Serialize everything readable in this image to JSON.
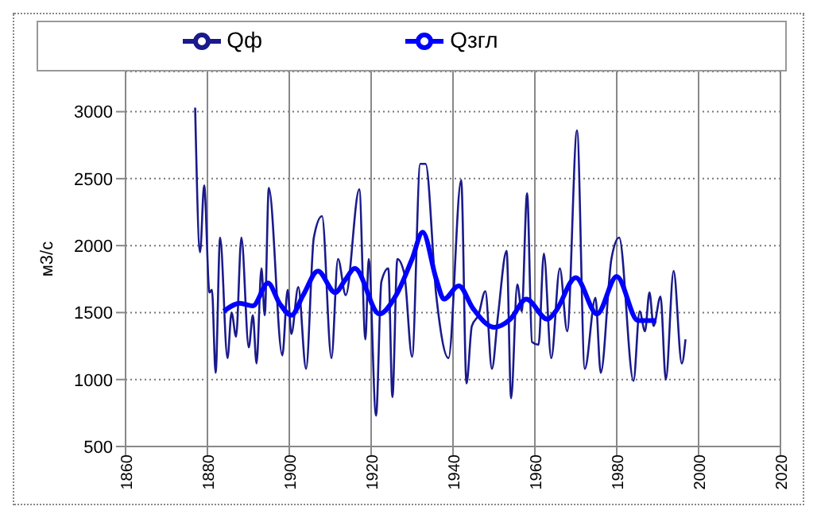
{
  "chart_data": {
    "type": "line",
    "ylabel": "м3/с",
    "xlim": [
      1860,
      2020
    ],
    "xticks": [
      1860,
      1880,
      1900,
      1920,
      1940,
      1960,
      1980,
      2000,
      2020
    ],
    "ylim": [
      500,
      3300
    ],
    "yticks": [
      500,
      1000,
      1500,
      2000,
      2500,
      3000
    ],
    "grid": true,
    "legend": "top",
    "marker": "none",
    "line_style": "solid",
    "series": [
      {
        "name": "Qф",
        "color": "#1a1a8c",
        "x": [
          1877,
          1878.2,
          1879.2,
          1880.5,
          1881.1,
          1882,
          1883.1,
          1884.9,
          1885.9,
          1887,
          1888.3,
          1890.1,
          1891.1,
          1892,
          1893.2,
          1894,
          1895,
          1898.3,
          1899.6,
          1900.5,
          1902.2,
          1904.1,
          1906,
          1908,
          1910.3,
          1911.9,
          1913.8,
          1917.1,
          1918.6,
          1919.4,
          1921.2,
          1922.5,
          1924.2,
          1925.2,
          1926.4,
          1928.1,
          1930,
          1932,
          1933.3,
          1935.9,
          1938.9,
          1942,
          1943.3,
          1944.6,
          1946.2,
          1947.9,
          1949.5,
          1951,
          1953.1,
          1954.2,
          1955.7,
          1956.8,
          1958.1,
          1959.3,
          1960.9,
          1962.2,
          1964,
          1966.1,
          1967.9,
          1970.3,
          1972.2,
          1974.8,
          1976.1,
          1978.7,
          1980.6,
          1984.1,
          1985.6,
          1986.9,
          1988,
          1989,
          1990.7,
          1992,
          1993.9,
          1995.9,
          1996.8
        ],
        "values": [
          3030,
          1950,
          2450,
          1650,
          1670,
          1050,
          2060,
          1160,
          1500,
          1320,
          2060,
          1240,
          1480,
          1120,
          1830,
          1480,
          2430,
          1180,
          1670,
          1340,
          1690,
          1080,
          2060,
          2220,
          1160,
          1900,
          1630,
          2420,
          1300,
          1900,
          730,
          1730,
          1830,
          870,
          1900,
          1790,
          1170,
          2610,
          2610,
          1630,
          1160,
          2490,
          970,
          1400,
          1480,
          1660,
          1080,
          1480,
          1960,
          860,
          1710,
          1510,
          2390,
          1280,
          1260,
          1940,
          1160,
          1830,
          1360,
          2860,
          1080,
          1610,
          1050,
          1900,
          2060,
          990,
          1510,
          1360,
          1650,
          1400,
          1620,
          1000,
          1810,
          1120,
          1300
        ]
      },
      {
        "name": "Qзгл",
        "color": "#0000ff",
        "x": [
          1884,
          1887.9,
          1891.1,
          1894.8,
          1897.6,
          1900.5,
          1903.4,
          1907,
          1911.2,
          1913.8,
          1916,
          1922,
          1926.1,
          1930,
          1932.6,
          1935.9,
          1937.8,
          1941.4,
          1944.9,
          1950.1,
          1954,
          1957.9,
          1963.1,
          1965.1,
          1970,
          1975.2,
          1980,
          1985.2,
          1989.7
        ],
        "values": [
          1510,
          1570,
          1550,
          1720,
          1570,
          1480,
          1630,
          1810,
          1650,
          1750,
          1830,
          1490,
          1630,
          1900,
          2100,
          1750,
          1600,
          1700,
          1530,
          1390,
          1450,
          1600,
          1450,
          1510,
          1760,
          1490,
          1770,
          1440,
          1440
        ]
      }
    ]
  }
}
